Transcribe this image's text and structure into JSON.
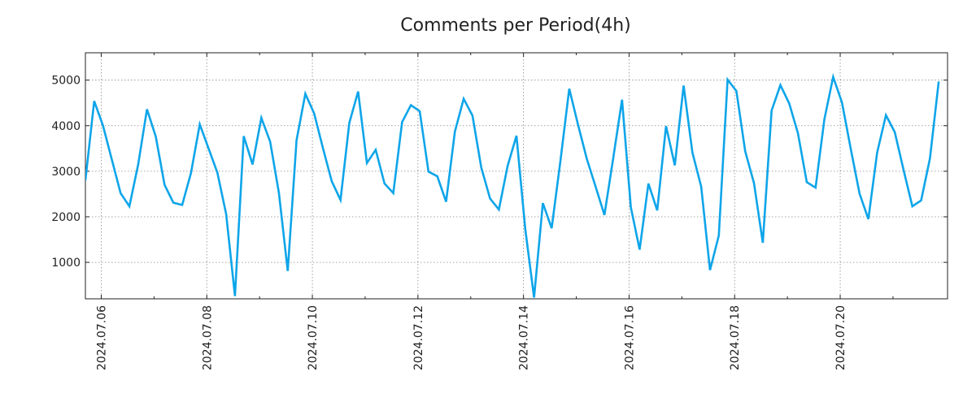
{
  "chart_data": {
    "type": "line",
    "title": "Comments per Period(4h)",
    "xlabel": "",
    "ylabel": "",
    "grid": true,
    "ylim": [
      200,
      5600
    ],
    "xlim": [
      0,
      98
    ],
    "y_ticks": [
      1000,
      2000,
      3000,
      4000,
      5000
    ],
    "y_tick_labels": [
      "1000",
      "2000",
      "3000",
      "4000",
      "5000"
    ],
    "x_ticks": [
      1.8,
      13.8,
      25.8,
      37.8,
      49.8,
      61.8,
      73.8,
      85.8
    ],
    "x_tick_labels": [
      "2024.07.06",
      "2024.07.08",
      "2024.07.10",
      "2024.07.12",
      "2024.07.14",
      "2024.07.16",
      "2024.07.18",
      "2024.07.20"
    ],
    "series": [
      {
        "name": "Comments",
        "color": "#0ea5e9",
        "values": [
          2800,
          4540,
          4000,
          3260,
          2520,
          2230,
          3150,
          4360,
          3760,
          2700,
          2310,
          2260,
          2960,
          4030,
          3500,
          2970,
          2060,
          260,
          3770,
          3150,
          4170,
          3650,
          2520,
          810,
          3680,
          4700,
          4270,
          3510,
          2780,
          2370,
          4060,
          4750,
          3180,
          3470,
          2730,
          2520,
          4080,
          4450,
          4320,
          2990,
          2890,
          2330,
          3870,
          4590,
          4220,
          3080,
          2400,
          2160,
          3120,
          3780,
          1730,
          230,
          2300,
          1750,
          3230,
          4810,
          4020,
          3270,
          2660,
          2040,
          3290,
          4570,
          2210,
          1280,
          2730,
          2140,
          3990,
          3130,
          4880,
          3410,
          2660,
          830,
          1590,
          5010,
          4760,
          3440,
          2740,
          1430,
          4330,
          4890,
          4490,
          3830,
          2760,
          2640,
          4140,
          5070,
          4510,
          3490,
          2510,
          1950,
          3410,
          4230,
          3860,
          3030,
          2230,
          2360,
          3280,
          4970
        ]
      }
    ]
  }
}
